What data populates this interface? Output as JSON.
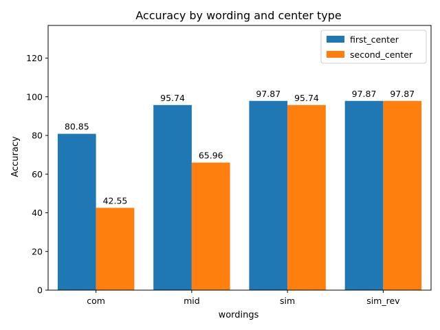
{
  "chart_data": {
    "type": "bar",
    "title": "Accuracy by wording and center type",
    "xlabel": "wordings",
    "ylabel": "Accuracy",
    "categories": [
      "com",
      "mid",
      "sim",
      "sim_rev"
    ],
    "series": [
      {
        "name": "first_center",
        "color": "#1f77b4",
        "values": [
          80.85,
          95.74,
          97.87,
          97.87
        ]
      },
      {
        "name": "second_center",
        "color": "#ff7f0e",
        "values": [
          42.55,
          65.96,
          95.74,
          97.87
        ]
      }
    ],
    "ylim": [
      0,
      136.9
    ],
    "yticks": [
      0,
      20,
      40,
      60,
      80,
      100,
      120
    ],
    "value_labels": true,
    "legend_position": "top-right",
    "grid": false
  }
}
